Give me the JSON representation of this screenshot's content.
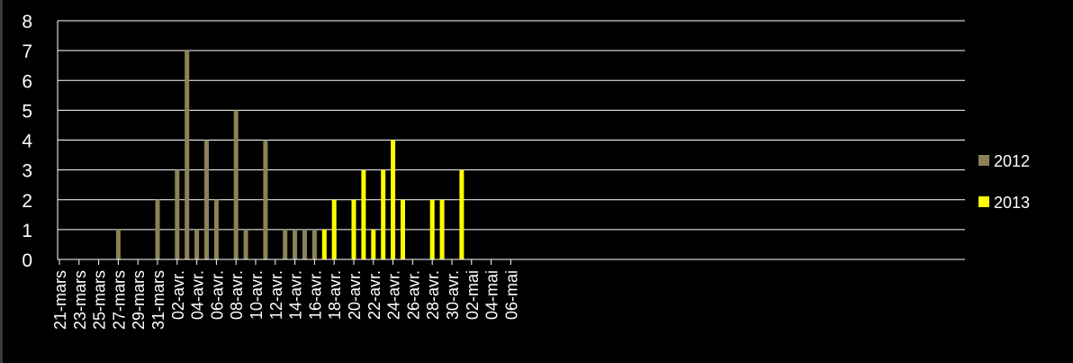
{
  "chart_data": {
    "type": "bar",
    "title": "",
    "xlabel": "",
    "ylabel": "",
    "ylim": [
      0,
      8
    ],
    "yticks": [
      0,
      1,
      2,
      3,
      4,
      5,
      6,
      7,
      8
    ],
    "grid": true,
    "legend_position": "right",
    "background": "#000000",
    "axis_color": "#ffffff",
    "x_tick_labels": [
      "21-mars",
      "23-mars",
      "25-mars",
      "27-mars",
      "29-mars",
      "31-mars",
      "02-avr.",
      "04-avr.",
      "06-avr.",
      "08-avr.",
      "10-avr.",
      "12-avr.",
      "14-avr.",
      "16-avr.",
      "18-avr.",
      "20-avr.",
      "22-avr.",
      "24-avr.",
      "26-avr.",
      "28-avr.",
      "30-avr.",
      "02-mai",
      "04-mai",
      "06-mai"
    ],
    "series": [
      {
        "name": "2012",
        "color": "#8c8257",
        "points": [
          {
            "x": "27-mars",
            "y": 1
          },
          {
            "x": "31-mars",
            "y": 2
          },
          {
            "x": "02-avr.",
            "y": 3
          },
          {
            "x": "03-avr.",
            "y": 7
          },
          {
            "x": "04-avr.",
            "y": 1
          },
          {
            "x": "05-avr.",
            "y": 4
          },
          {
            "x": "06-avr.",
            "y": 2
          },
          {
            "x": "08-avr.",
            "y": 5
          },
          {
            "x": "09-avr.",
            "y": 1
          },
          {
            "x": "11-avr.",
            "y": 4
          },
          {
            "x": "13-avr.",
            "y": 1
          },
          {
            "x": "14-avr.",
            "y": 1
          },
          {
            "x": "15-avr.",
            "y": 1
          },
          {
            "x": "16-avr.",
            "y": 1
          },
          {
            "x": "18-avr.",
            "y": 1
          }
        ]
      },
      {
        "name": "2013",
        "color": "#ffff00",
        "points": [
          {
            "x": "17-avr.",
            "y": 1
          },
          {
            "x": "18-avr.",
            "y": 2
          },
          {
            "x": "20-avr.",
            "y": 2
          },
          {
            "x": "21-avr.",
            "y": 3
          },
          {
            "x": "22-avr.",
            "y": 1
          },
          {
            "x": "23-avr.",
            "y": 3
          },
          {
            "x": "24-avr.",
            "y": 4
          },
          {
            "x": "25-avr.",
            "y": 2
          },
          {
            "x": "28-avr.",
            "y": 2
          },
          {
            "x": "29-avr.",
            "y": 2
          },
          {
            "x": "01-mai",
            "y": 3
          }
        ]
      }
    ]
  }
}
